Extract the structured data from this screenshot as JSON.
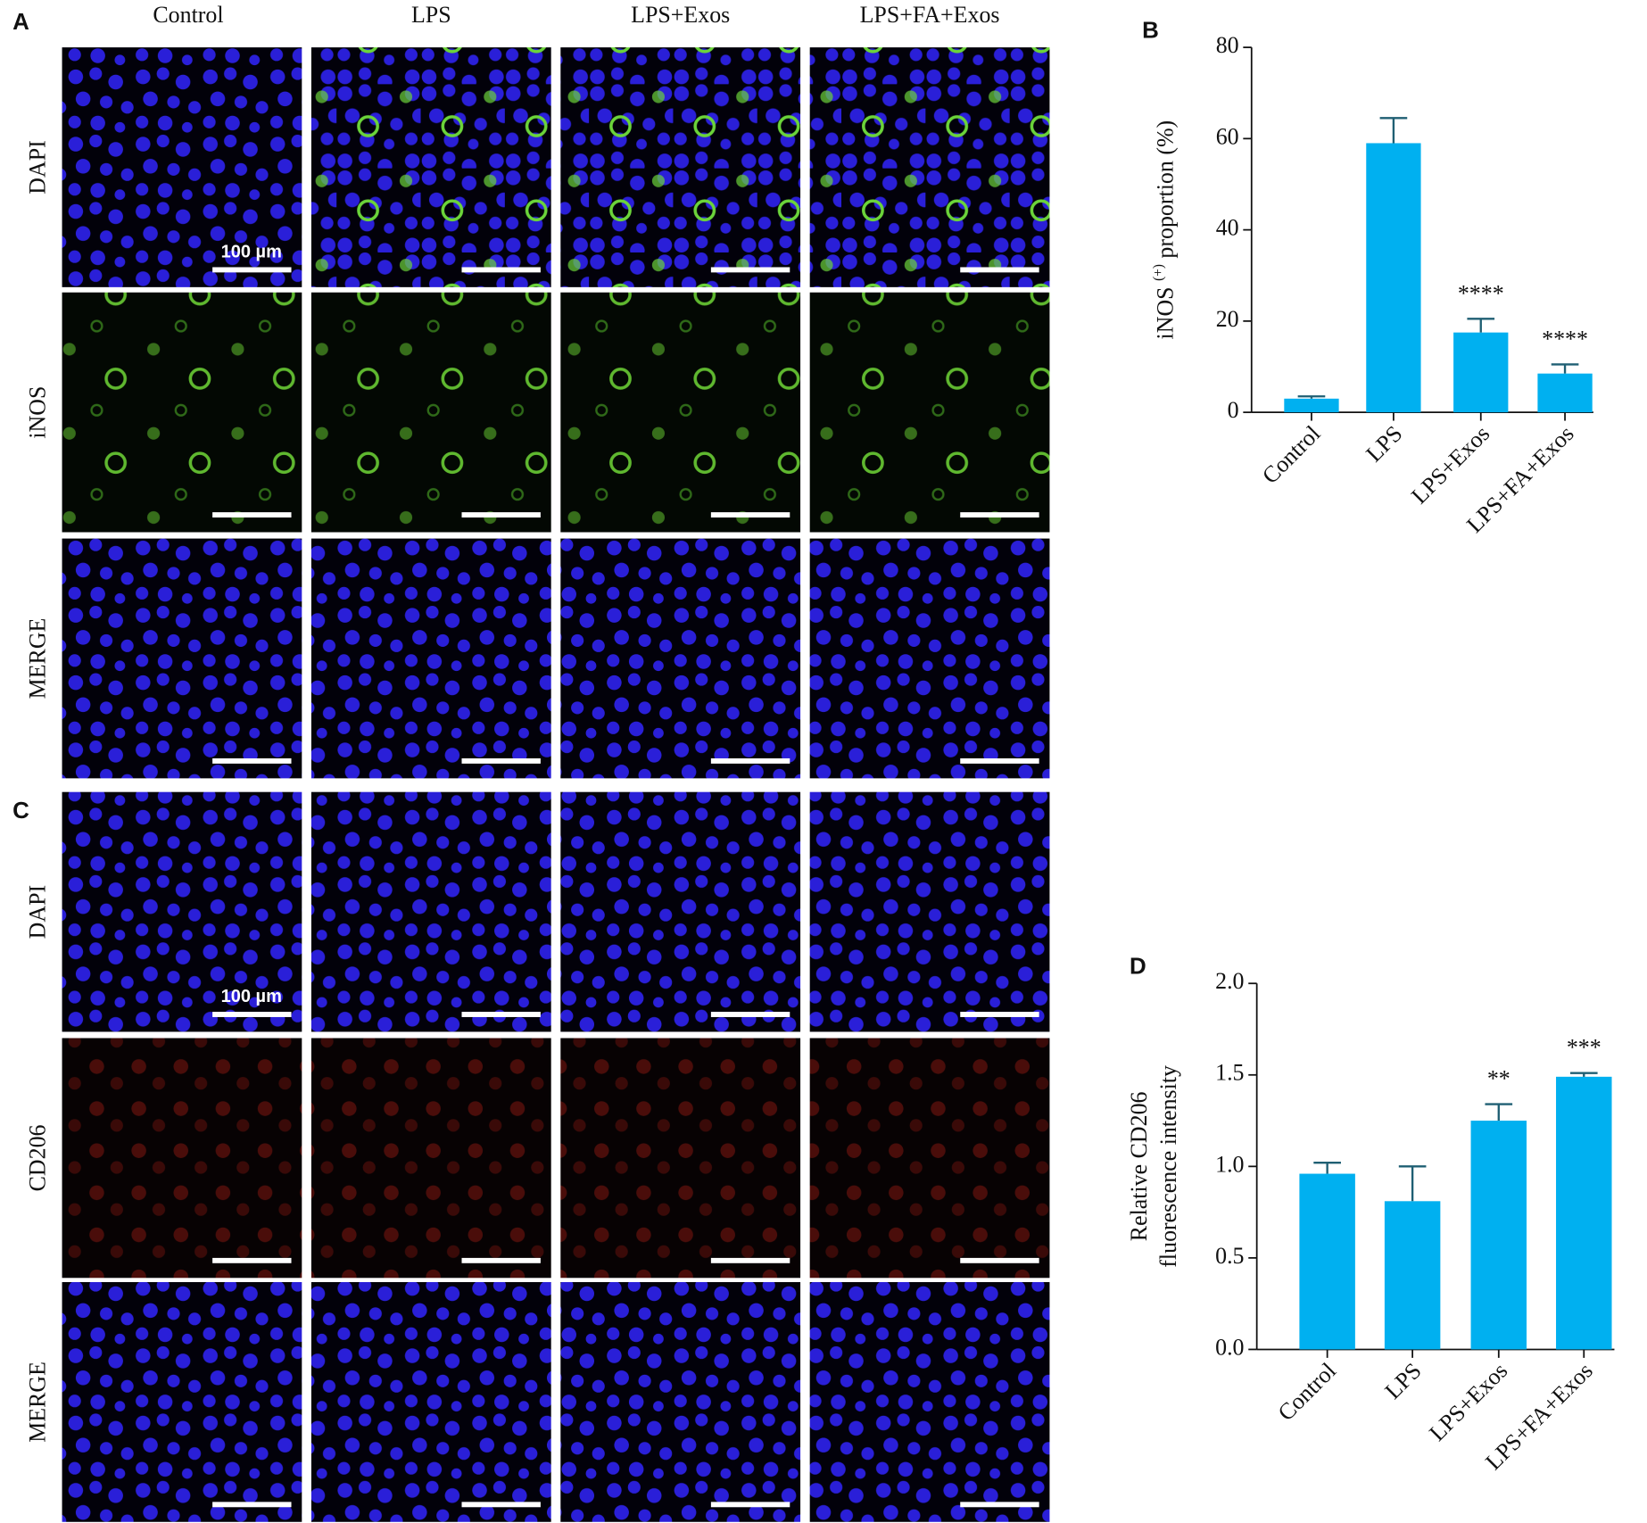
{
  "figure": {
    "panel_labels": [
      "A",
      "B",
      "C",
      "D"
    ],
    "columns": [
      "Control",
      "LPS",
      "LPS+Exos",
      "LPS+FA+Exos"
    ],
    "rows_a": [
      "DAPI",
      "iNOS",
      "MERGE"
    ],
    "rows_c": [
      "DAPI",
      "CD206",
      "MERGE"
    ],
    "scale_bar": "100 µm"
  },
  "chart_data": [
    {
      "type": "bar",
      "categories": [
        "Control",
        "LPS",
        "LPS+Exos",
        "LPS+FA+Exos"
      ],
      "values": [
        3,
        59,
        17.5,
        8.5
      ],
      "errors": [
        0.5,
        5.5,
        3,
        2
      ],
      "annotations": [
        null,
        null,
        "****",
        "****"
      ],
      "ylabel": [
        "iNOS ",
        "(+)",
        " proportion (%)"
      ],
      "color": "#00b0f0",
      "error_color": "#1f5f73",
      "ylim": [
        0,
        80
      ],
      "yticks": [
        0,
        20,
        40,
        60,
        80
      ]
    },
    {
      "type": "bar",
      "categories": [
        "Control",
        "LPS",
        "LPS+Exos",
        "LPS+FA+Exos"
      ],
      "values": [
        0.96,
        0.81,
        1.25,
        1.49
      ],
      "errors": [
        0.06,
        0.19,
        0.09,
        0.02
      ],
      "annotations": [
        null,
        null,
        "**",
        "***"
      ],
      "ylabel": [
        "Relative CD206",
        "fluorescence intensity"
      ],
      "color": "#00b0f0",
      "error_color": "#1f5f73",
      "ylim": [
        0,
        2
      ],
      "yticks": [
        {
          "value": 0,
          "label": "0.0"
        },
        {
          "value": 0.5,
          "label": "0.5"
        },
        {
          "value": 1,
          "label": "1.0"
        },
        {
          "value": 1.5,
          "label": "1.5"
        },
        {
          "value": 2,
          "label": "2.0"
        }
      ]
    }
  ]
}
